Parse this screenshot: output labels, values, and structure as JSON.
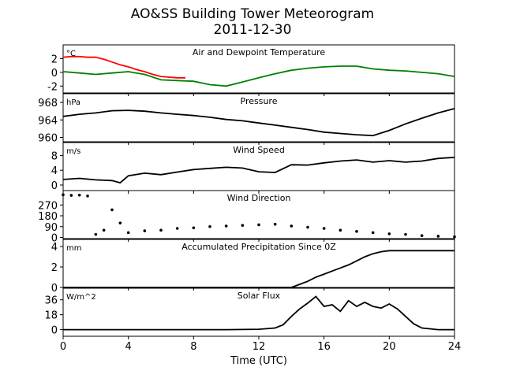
{
  "title": "AO&SS Building Tower Meteorogram",
  "subtitle": "2011-12-30",
  "chart_data": [
    {
      "type": "line",
      "title": "Air and Dewpoint Temperature",
      "unit": "°C",
      "ylim": [
        -3,
        4
      ],
      "yticks": [
        -2,
        0,
        2
      ],
      "series": [
        {
          "color": "#ff0000",
          "x": [
            0,
            0.5,
            1,
            1.5,
            2,
            2.5,
            3,
            3.5,
            4,
            4.5,
            5,
            5.5,
            6,
            6.5,
            7,
            7.5
          ],
          "y": [
            2.2,
            2.3,
            2.3,
            2.2,
            2.2,
            1.9,
            1.5,
            1.1,
            0.8,
            0.4,
            0.1,
            -0.3,
            -0.6,
            -0.7,
            -0.8,
            -0.8
          ]
        },
        {
          "color": "#008000",
          "x": [
            0,
            1,
            2,
            3,
            4,
            5,
            6,
            7,
            8,
            9,
            10,
            11,
            12,
            13,
            14,
            15,
            16,
            17,
            18,
            19,
            20,
            21,
            22,
            23,
            24
          ],
          "y": [
            0.1,
            -0.1,
            -0.3,
            -0.1,
            0.1,
            -0.3,
            -1.1,
            -1.2,
            -1.3,
            -1.8,
            -2.0,
            -1.4,
            -0.8,
            -0.2,
            0.3,
            0.6,
            0.8,
            0.9,
            0.9,
            0.5,
            0.3,
            0.2,
            0.0,
            -0.2,
            -0.6
          ]
        }
      ]
    },
    {
      "type": "line",
      "title": "Pressure",
      "unit": "hPa",
      "ylim": [
        959,
        970
      ],
      "yticks": [
        960,
        964,
        968
      ],
      "series": [
        {
          "color": "#000000",
          "x": [
            0,
            1,
            2,
            3,
            4,
            5,
            6,
            7,
            8,
            9,
            10,
            11,
            12,
            13,
            14,
            15,
            16,
            17,
            18,
            19,
            20,
            21,
            22,
            23,
            24
          ],
          "y": [
            964.8,
            965.3,
            965.6,
            966.1,
            966.2,
            966.0,
            965.6,
            965.3,
            965.0,
            964.6,
            964.1,
            963.8,
            963.3,
            962.8,
            962.3,
            961.8,
            961.2,
            960.9,
            960.6,
            960.4,
            961.6,
            963.1,
            964.4,
            965.6,
            966.6
          ]
        }
      ]
    },
    {
      "type": "line",
      "title": "Wind Speed",
      "unit": "m/s",
      "ylim": [
        -1.5,
        11.5
      ],
      "yticks": [
        0,
        4,
        8
      ],
      "series": [
        {
          "color": "#000000",
          "x": [
            0,
            1,
            2,
            3,
            3.5,
            4,
            5,
            6,
            7,
            8,
            9,
            10,
            11,
            12,
            13,
            14,
            15,
            16,
            17,
            18,
            19,
            20,
            21,
            22,
            23,
            24
          ],
          "y": [
            1.5,
            1.8,
            1.4,
            1.2,
            0.6,
            2.5,
            3.2,
            2.8,
            3.5,
            4.2,
            4.5,
            4.8,
            4.6,
            3.6,
            3.4,
            5.5,
            5.4,
            6.0,
            6.5,
            6.8,
            6.2,
            6.6,
            6.2,
            6.5,
            7.2,
            7.5
          ]
        }
      ]
    },
    {
      "type": "scatter",
      "title": "Wind Direction",
      "ylim": [
        -10,
        390
      ],
      "yticks": [
        0,
        90,
        180,
        270
      ],
      "series": [
        {
          "color": "#000000",
          "x": [
            0,
            0.5,
            1,
            1.5,
            2,
            2.5,
            3,
            3.5,
            4,
            5,
            6,
            7,
            8,
            9,
            10,
            11,
            12,
            13,
            14,
            15,
            16,
            17,
            18,
            19,
            20,
            21,
            22,
            23,
            24
          ],
          "y": [
            355,
            350,
            352,
            345,
            25,
            60,
            230,
            120,
            40,
            55,
            60,
            75,
            80,
            90,
            95,
            100,
            105,
            110,
            95,
            85,
            75,
            60,
            50,
            40,
            30,
            25,
            15,
            10,
            5
          ]
        }
      ]
    },
    {
      "type": "line",
      "title": "Accumulated Precipitation Since 0Z",
      "unit": "mm",
      "ylim": [
        0,
        4.7
      ],
      "yticks": [
        0,
        2,
        4
      ],
      "series": [
        {
          "color": "#000000",
          "x": [
            0,
            14,
            14.5,
            15,
            15.5,
            16,
            16.5,
            17,
            17.5,
            18,
            18.5,
            19,
            19.5,
            20,
            24
          ],
          "y": [
            0,
            0,
            0.3,
            0.6,
            1.0,
            1.3,
            1.6,
            1.9,
            2.2,
            2.6,
            3.0,
            3.3,
            3.5,
            3.6,
            3.6
          ]
        }
      ]
    },
    {
      "type": "line",
      "title": "Solar Flux",
      "unit": "W/m^2",
      "ylim": [
        -8,
        50
      ],
      "yticks": [
        0,
        18,
        36
      ],
      "xlabel": "Time (UTC)",
      "xlim": [
        0,
        24
      ],
      "xticks": [
        0,
        4,
        8,
        12,
        16,
        20,
        24
      ],
      "series": [
        {
          "color": "#000000",
          "x": [
            0,
            10,
            12,
            13,
            13.5,
            14,
            14.5,
            15,
            15.5,
            16,
            16.5,
            17,
            17.5,
            18,
            18.5,
            19,
            19.5,
            20,
            20.5,
            21,
            21.5,
            22,
            23,
            24
          ],
          "y": [
            0,
            0,
            0.5,
            2,
            6,
            16,
            25,
            32,
            40,
            28,
            30,
            22,
            35,
            28,
            33,
            28,
            26,
            31,
            25,
            16,
            7,
            2,
            0,
            0
          ]
        }
      ]
    }
  ]
}
